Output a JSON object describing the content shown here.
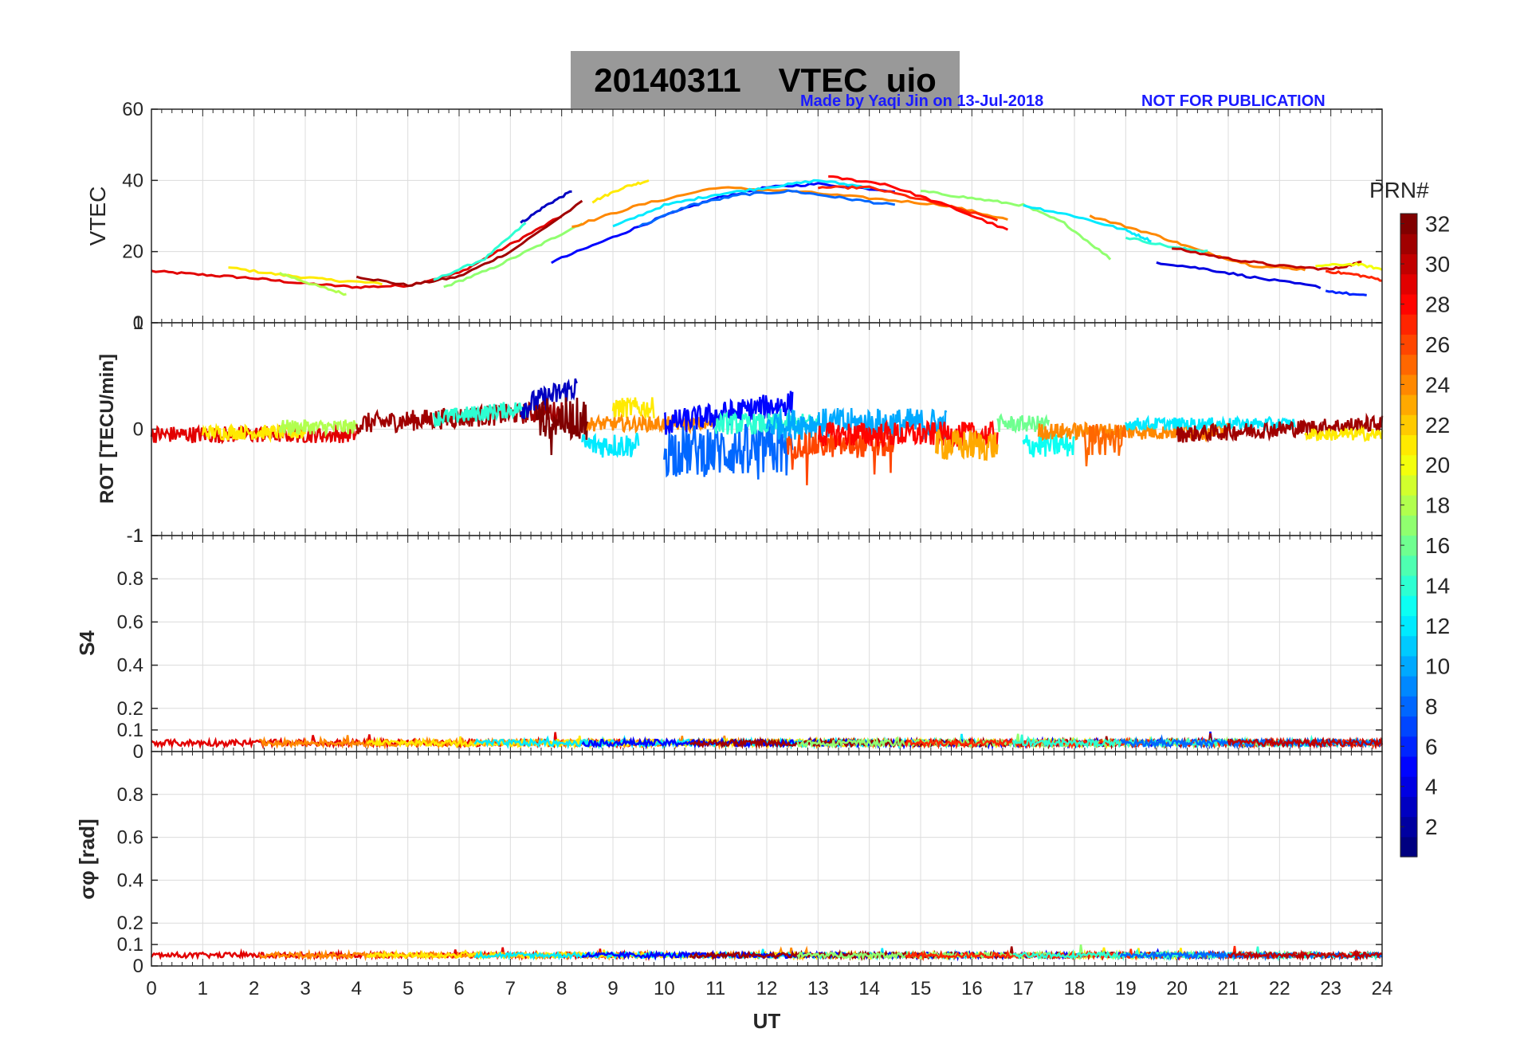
{
  "header": {
    "title": "20140311    VTEC  uio",
    "made_by": "Made by Yaqi Jin on 13-Jul-2018",
    "notice": "NOT FOR PUBLICATION"
  },
  "colors": {
    "title_bg": "#999999",
    "annotation": "#1a1aff",
    "grid": "#dcdcdc",
    "axis": "#262626"
  },
  "chart_data": [
    {
      "type": "line",
      "title": "",
      "xlabel": "",
      "ylabel": "VTEC",
      "xlim": [
        0,
        24
      ],
      "ylim": [
        0,
        60
      ],
      "yticks": [
        {
          "v": 0,
          "label": "0"
        },
        {
          "v": 20,
          "label": "20"
        },
        {
          "v": 40,
          "label": "40"
        },
        {
          "v": 60,
          "label": "60"
        }
      ],
      "series": [
        {
          "name": "PRN 29",
          "prn": 29,
          "points": [
            [
              0,
              14.5
            ],
            [
              1,
              13.5
            ],
            [
              2,
              12.5
            ],
            [
              3,
              11
            ],
            [
              4,
              10
            ],
            [
              5,
              10.5
            ],
            [
              6,
              14
            ],
            [
              7,
              22
            ],
            [
              8,
              30
            ]
          ]
        },
        {
          "name": "PRN 21",
          "prn": 21,
          "points": [
            [
              1.5,
              15.5
            ],
            [
              2.5,
              13.5
            ],
            [
              3.5,
              12
            ],
            [
              4.5,
              11
            ]
          ]
        },
        {
          "name": "PRN 18",
          "prn": 18,
          "points": [
            [
              2.5,
              14
            ],
            [
              3.2,
              10.5
            ],
            [
              3.8,
              8
            ]
          ]
        },
        {
          "name": "PRN 31",
          "prn": 31,
          "points": [
            [
              4,
              13
            ],
            [
              5,
              10.5
            ],
            [
              6,
              13
            ],
            [
              7,
              20
            ],
            [
              8.4,
              34
            ]
          ]
        },
        {
          "name": "PRN 14",
          "prn": 14,
          "points": [
            [
              5.5,
              12
            ],
            [
              6.5,
              18
            ],
            [
              7.3,
              28
            ]
          ]
        },
        {
          "name": "PRN 17",
          "prn": 17,
          "points": [
            [
              5.7,
              10
            ],
            [
              6.6,
              15
            ],
            [
              7.6,
              22
            ],
            [
              8.4,
              28
            ]
          ]
        },
        {
          "name": "PRN 3",
          "prn": 3,
          "points": [
            [
              7.2,
              28
            ],
            [
              7.7,
              33
            ],
            [
              8.2,
              37
            ]
          ]
        },
        {
          "name": "PRN 5",
          "prn": 5,
          "points": [
            [
              7.8,
              17
            ],
            [
              9,
              24
            ],
            [
              10,
              30
            ],
            [
              11,
              35
            ],
            [
              12,
              38
            ],
            [
              13,
              39
            ],
            [
              14.5,
              37
            ]
          ]
        },
        {
          "name": "PRN 21b",
          "prn": 21,
          "points": [
            [
              8.6,
              34
            ],
            [
              9.2,
              38
            ],
            [
              9.7,
              40
            ]
          ]
        },
        {
          "name": "PRN 24",
          "prn": 24,
          "points": [
            [
              8.2,
              27
            ],
            [
              9.5,
              33
            ],
            [
              11,
              38
            ],
            [
              12.5,
              37
            ],
            [
              14,
              35
            ],
            [
              15.5,
              33
            ],
            [
              16.7,
              29
            ]
          ]
        },
        {
          "name": "PRN 12",
          "prn": 12,
          "points": [
            [
              9,
              27
            ],
            [
              10,
              33
            ],
            [
              11,
              36
            ],
            [
              12,
              38
            ],
            [
              13,
              40
            ],
            [
              14,
              38
            ]
          ]
        },
        {
          "name": "PRN 8",
          "prn": 8,
          "points": [
            [
              9.5,
              27
            ],
            [
              10.5,
              33
            ],
            [
              11.5,
              36
            ],
            [
              12.5,
              37
            ],
            [
              13.5,
              35
            ],
            [
              14.5,
              33
            ]
          ]
        },
        {
          "name": "PRN 27",
          "prn": 27,
          "points": [
            [
              13,
              38
            ],
            [
              14,
              38
            ],
            [
              15.2,
              34
            ],
            [
              16.5,
              29
            ]
          ]
        },
        {
          "name": "PRN 28",
          "prn": 28,
          "points": [
            [
              13.2,
              41
            ],
            [
              14.3,
              39
            ],
            [
              15.5,
              33
            ],
            [
              16.7,
              26
            ]
          ]
        },
        {
          "name": "PRN 17b",
          "prn": 17,
          "points": [
            [
              15,
              37
            ],
            [
              16,
              35
            ],
            [
              17,
              33
            ],
            [
              17.8,
              28
            ],
            [
              18.7,
              18
            ]
          ]
        },
        {
          "name": "PRN 12b",
          "prn": 12,
          "points": [
            [
              17,
              33
            ],
            [
              18,
              30
            ],
            [
              19,
              26
            ],
            [
              19.5,
              23
            ]
          ]
        },
        {
          "name": "PRN 24b",
          "prn": 24,
          "points": [
            [
              18.3,
              30
            ],
            [
              19.5,
              25
            ],
            [
              20.5,
              20
            ],
            [
              21.5,
              16
            ],
            [
              22.5,
              15
            ]
          ]
        },
        {
          "name": "PRN 14b",
          "prn": 14,
          "points": [
            [
              19,
              24
            ],
            [
              20,
              21
            ],
            [
              20.6,
              20
            ]
          ]
        },
        {
          "name": "PRN 30",
          "prn": 30,
          "points": [
            [
              19.9,
              21
            ],
            [
              21,
              18
            ],
            [
              22,
              16
            ],
            [
              23,
              15
            ],
            [
              23.6,
              17
            ]
          ]
        },
        {
          "name": "PRN 4",
          "prn": 4,
          "points": [
            [
              19.6,
              17
            ],
            [
              20.6,
              15
            ],
            [
              21.6,
              12.5
            ],
            [
              22.8,
              10
            ]
          ]
        },
        {
          "name": "PRN 6",
          "prn": 6,
          "points": [
            [
              22.9,
              9
            ],
            [
              23.7,
              7.5
            ]
          ]
        },
        {
          "name": "PRN 20",
          "prn": 20,
          "points": [
            [
              22.7,
              16
            ],
            [
              23.5,
              16.5
            ],
            [
              24,
              15
            ]
          ]
        },
        {
          "name": "PRN 27b",
          "prn": 27,
          "points": [
            [
              22.9,
              14.5
            ],
            [
              23.5,
              13.5
            ],
            [
              24,
              12
            ]
          ]
        }
      ]
    },
    {
      "type": "line",
      "ylabel": "ROT [TECU/min]",
      "xlim": [
        0,
        24
      ],
      "ylim": [
        -1,
        1
      ],
      "yticks": [
        {
          "v": -1,
          "label": "-1"
        },
        {
          "v": 0,
          "label": "0"
        },
        {
          "v": 1,
          "label": "1"
        }
      ],
      "series_note": "noisy ROT traces per PRN",
      "segments": [
        {
          "prn": 29,
          "x": [
            0,
            4
          ],
          "base": -0.05,
          "amp": 0.08
        },
        {
          "prn": 21,
          "x": [
            1,
            3
          ],
          "base": -0.03,
          "amp": 0.07
        },
        {
          "prn": 18,
          "x": [
            2.5,
            4
          ],
          "base": 0.02,
          "amp": 0.07
        },
        {
          "prn": 31,
          "x": [
            4,
            8
          ],
          "base": 0.05,
          "amp": 0.1,
          "trend": 0.12
        },
        {
          "prn": 14,
          "x": [
            5.5,
            7.3
          ],
          "base": 0.1,
          "amp": 0.08,
          "trend": 0.1
        },
        {
          "prn": 3,
          "x": [
            7.2,
            8.3
          ],
          "base": 0.2,
          "amp": 0.12,
          "trend": 0.2
        },
        {
          "prn": 32,
          "x": [
            7.5,
            8.5
          ],
          "base": 0.1,
          "amp": 0.2,
          "spike": -0.5
        },
        {
          "prn": 12,
          "x": [
            8.4,
            9.5
          ],
          "base": -0.15,
          "amp": 0.12
        },
        {
          "prn": 21,
          "x": [
            9,
            9.8
          ],
          "base": 0.2,
          "amp": 0.1
        },
        {
          "prn": 24,
          "x": [
            8.5,
            11
          ],
          "base": 0.05,
          "amp": 0.07
        },
        {
          "prn": 8,
          "x": [
            10,
            12.5
          ],
          "base": -0.2,
          "amp": 0.25,
          "spike": -0.3
        },
        {
          "prn": 5,
          "x": [
            10,
            12.5
          ],
          "base": 0.05,
          "amp": 0.12,
          "trend": 0.2
        },
        {
          "prn": 14,
          "x": [
            11,
            13
          ],
          "base": 0.05,
          "amp": 0.1
        },
        {
          "prn": 10,
          "x": [
            12,
            15.5
          ],
          "base": 0.05,
          "amp": 0.15
        },
        {
          "prn": 26,
          "x": [
            12.4,
            14.5
          ],
          "base": -0.15,
          "amp": 0.12,
          "spike": -0.35
        },
        {
          "prn": 28,
          "x": [
            13,
            16.5
          ],
          "base": -0.05,
          "amp": 0.12
        },
        {
          "prn": 23,
          "x": [
            15.3,
            16.5
          ],
          "base": -0.15,
          "amp": 0.15
        },
        {
          "prn": 16,
          "x": [
            16.5,
            17.5
          ],
          "base": 0.05,
          "amp": 0.08
        },
        {
          "prn": 13,
          "x": [
            17,
            18
          ],
          "base": -0.15,
          "amp": 0.12
        },
        {
          "prn": 24,
          "x": [
            17.3,
            21
          ],
          "base": -0.02,
          "amp": 0.08
        },
        {
          "prn": 25,
          "x": [
            18.2,
            19
          ],
          "base": -0.1,
          "amp": 0.15,
          "spike": -0.25
        },
        {
          "prn": 12,
          "x": [
            19,
            22.3
          ],
          "base": 0.05,
          "amp": 0.06
        },
        {
          "prn": 31,
          "x": [
            20,
            24
          ],
          "base": -0.05,
          "amp": 0.08,
          "trend": 0.1
        },
        {
          "prn": 21,
          "x": [
            22.5,
            24
          ],
          "base": -0.05,
          "amp": 0.06
        }
      ]
    },
    {
      "type": "line",
      "ylabel": "S4",
      "xlim": [
        0,
        24
      ],
      "ylim": [
        0,
        1
      ],
      "yticks": [
        {
          "v": 0,
          "label": "0"
        },
        {
          "v": 0.1,
          "label": "0.1"
        },
        {
          "v": 0.2,
          "label": "0.2"
        },
        {
          "v": 0.4,
          "label": "0.4"
        },
        {
          "v": 0.6,
          "label": "0.6"
        },
        {
          "v": 0.8,
          "label": "0.8"
        },
        {
          "v": 1,
          "label": "1"
        }
      ],
      "baseline": 0.04,
      "noise": 0.015
    },
    {
      "type": "line",
      "ylabel": "σφ [rad]",
      "xlabel": "UT",
      "xlim": [
        0,
        24
      ],
      "ylim": [
        0,
        1
      ],
      "yticks": [
        {
          "v": 0,
          "label": "0"
        },
        {
          "v": 0.1,
          "label": "0.1"
        },
        {
          "v": 0.2,
          "label": "0.2"
        },
        {
          "v": 0.4,
          "label": "0.4"
        },
        {
          "v": 0.6,
          "label": "0.6"
        },
        {
          "v": 0.8,
          "label": "0.8"
        }
      ],
      "xticks": [
        "0",
        "1",
        "2",
        "3",
        "4",
        "5",
        "6",
        "7",
        "8",
        "9",
        "10",
        "11",
        "12",
        "13",
        "14",
        "15",
        "16",
        "17",
        "18",
        "19",
        "20",
        "21",
        "22",
        "23",
        "24"
      ],
      "baseline": 0.05,
      "noise": 0.012
    }
  ],
  "colorbar": {
    "label": "PRN#",
    "range": [
      1,
      32
    ],
    "ticks": [
      "2",
      "4",
      "6",
      "8",
      "10",
      "12",
      "14",
      "16",
      "18",
      "20",
      "22",
      "24",
      "26",
      "28",
      "30",
      "32"
    ]
  }
}
